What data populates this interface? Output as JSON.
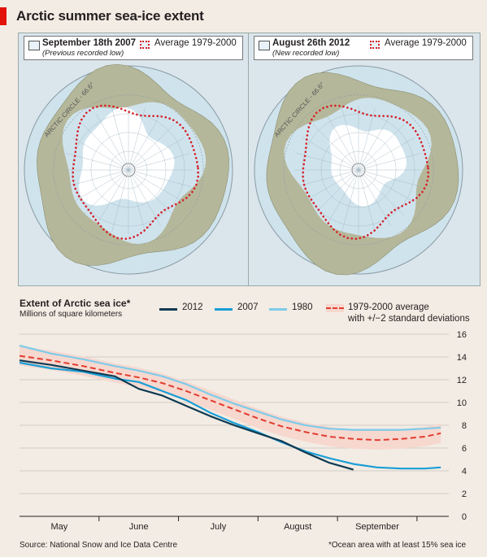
{
  "title": "Arctic summer sea-ice extent",
  "maps": [
    {
      "date": "September 18th 2007",
      "note": "(Previous recorded low)",
      "avg_label": "Average 1979-2000",
      "circle_label": "ARCTIC CIRCLE - 66.6°"
    },
    {
      "date": "August 26th 2012",
      "note": "(New recorded low)",
      "avg_label": "Average 1979-2000",
      "circle_label": "ARCTIC CIRCLE - 66.6°"
    }
  ],
  "colors": {
    "y2012": "#0f3a52",
    "y2007": "#1a9ed6",
    "y1980": "#7fcbe9",
    "avg": "#e23b2e",
    "band": "#f6d8cf",
    "land": "#b5b79a",
    "ice": "#ffffff",
    "ocean": "#cfe3ed"
  },
  "chart_data": {
    "type": "line",
    "title": "Extent of Arctic sea ice*",
    "ylabel": "Millions of square kilometers",
    "ylim": [
      0,
      16
    ],
    "yticks": [
      0,
      2,
      4,
      6,
      8,
      10,
      12,
      14,
      16
    ],
    "xlim": [
      0,
      5.4
    ],
    "months": [
      {
        "label": "May",
        "x": 0.5
      },
      {
        "label": "June",
        "x": 1.5
      },
      {
        "label": "July",
        "x": 2.5
      },
      {
        "label": "August",
        "x": 3.5
      },
      {
        "label": "September",
        "x": 4.5
      }
    ],
    "series": [
      {
        "name": "2012",
        "key": "y2012",
        "points": [
          [
            0,
            13.7
          ],
          [
            0.4,
            13.3
          ],
          [
            0.8,
            12.8
          ],
          [
            1.2,
            12.3
          ],
          [
            1.5,
            11.2
          ],
          [
            1.8,
            10.6
          ],
          [
            2.1,
            9.7
          ],
          [
            2.4,
            8.8
          ],
          [
            2.7,
            8.0
          ],
          [
            3.0,
            7.3
          ],
          [
            3.3,
            6.6
          ],
          [
            3.6,
            5.6
          ],
          [
            3.9,
            4.7
          ],
          [
            4.2,
            4.1
          ]
        ]
      },
      {
        "name": "2007",
        "key": "y2007",
        "points": [
          [
            0,
            13.5
          ],
          [
            0.4,
            13.0
          ],
          [
            0.8,
            12.7
          ],
          [
            1.2,
            12.1
          ],
          [
            1.5,
            11.8
          ],
          [
            1.8,
            11.0
          ],
          [
            2.1,
            10.2
          ],
          [
            2.4,
            9.1
          ],
          [
            2.7,
            8.2
          ],
          [
            3.0,
            7.4
          ],
          [
            3.3,
            6.5
          ],
          [
            3.6,
            5.7
          ],
          [
            3.9,
            5.1
          ],
          [
            4.2,
            4.6
          ],
          [
            4.5,
            4.3
          ],
          [
            4.8,
            4.2
          ],
          [
            5.1,
            4.2
          ],
          [
            5.3,
            4.3
          ]
        ]
      },
      {
        "name": "1980",
        "key": "y1980",
        "points": [
          [
            0,
            15.0
          ],
          [
            0.4,
            14.3
          ],
          [
            0.8,
            13.8
          ],
          [
            1.2,
            13.2
          ],
          [
            1.5,
            12.8
          ],
          [
            1.8,
            12.3
          ],
          [
            2.1,
            11.6
          ],
          [
            2.4,
            10.7
          ],
          [
            2.7,
            9.9
          ],
          [
            3.0,
            9.2
          ],
          [
            3.3,
            8.5
          ],
          [
            3.6,
            8.0
          ],
          [
            3.9,
            7.7
          ],
          [
            4.2,
            7.6
          ],
          [
            4.5,
            7.6
          ],
          [
            4.8,
            7.6
          ],
          [
            5.1,
            7.7
          ],
          [
            5.3,
            7.8
          ]
        ]
      },
      {
        "name": "1979-2000 average with +/−2 standard deviations",
        "key": "avg",
        "points": [
          [
            0,
            14.1
          ],
          [
            0.4,
            13.7
          ],
          [
            0.8,
            13.2
          ],
          [
            1.2,
            12.6
          ],
          [
            1.5,
            12.2
          ],
          [
            1.8,
            11.7
          ],
          [
            2.1,
            11.0
          ],
          [
            2.4,
            10.2
          ],
          [
            2.7,
            9.4
          ],
          [
            3.0,
            8.6
          ],
          [
            3.3,
            7.9
          ],
          [
            3.6,
            7.4
          ],
          [
            3.9,
            7.0
          ],
          [
            4.2,
            6.8
          ],
          [
            4.5,
            6.7
          ],
          [
            4.8,
            6.8
          ],
          [
            5.1,
            7.0
          ],
          [
            5.3,
            7.3
          ]
        ],
        "band_width": 0.85
      }
    ],
    "legend_labels": [
      "2012",
      "2007",
      "1980",
      "1979-2000 average",
      "with +/−2 standard deviations"
    ]
  },
  "source": "Source: National Snow and Ice Data Centre",
  "footnote": "*Ocean area with at least 15% sea ice"
}
